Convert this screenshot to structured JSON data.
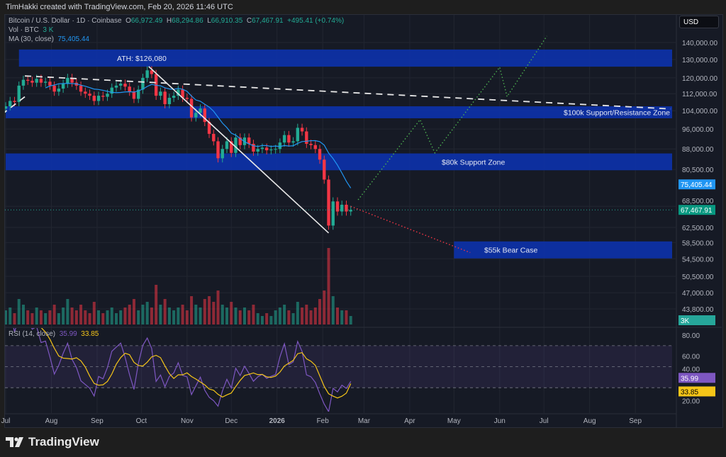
{
  "credit": "TimHakki created with TradingView.com, Feb 20, 2026 11:46 UTC",
  "legend": {
    "symbol": "Bitcoin / U.S. Dollar · 1D · Coinbase",
    "o_label": "O",
    "o": "66,972.49",
    "h_label": "H",
    "h": "68,294.86",
    "l_label": "L",
    "l": "66,910.35",
    "c_label": "C",
    "c": "67,467.91",
    "change": "+495.41 (+0.74%)",
    "vol_label": "Vol · BTC",
    "vol": "3 K",
    "ma_label": "MA (30, close)",
    "ma": "75,405.44",
    "rsi_label": "RSI (14, close)",
    "rsi": "35.99",
    "rsi_ma": "33.85"
  },
  "currency": "USD",
  "brand": "TradingView",
  "colors": {
    "up": "#22ab94",
    "down": "#f23645",
    "ma": "#2196f3",
    "zone": "#0d31a8",
    "rsi": "#7e57c2",
    "rsi_ma": "#f5c518",
    "bull_path": "#4caf50",
    "bear_path": "#f23645",
    "bg": "#161a25"
  },
  "chart_data": [
    {
      "type": "candlestick",
      "scale": "log",
      "x_start": "2025-07-01",
      "x_step_days": 3,
      "closes": [
        106,
        108.5,
        108,
        116,
        119,
        118.5,
        117.5,
        119.5,
        117.5,
        118,
        116,
        113,
        114.5,
        117,
        120,
        117.5,
        116,
        113,
        112,
        111,
        108.5,
        111,
        110.5,
        112,
        115,
        116,
        117,
        115.5,
        113,
        109.5,
        114,
        120,
        124,
        122,
        111,
        113,
        107,
        110,
        111,
        114,
        110,
        109.5,
        101,
        103,
        105,
        99,
        94,
        91,
        84.5,
        88,
        91,
        86.5,
        92.5,
        89.5,
        92.5,
        90,
        87,
        88,
        88.5,
        87.5,
        87.8,
        88,
        90.5,
        93.5,
        90.5,
        91,
        96.5,
        95,
        90,
        89.5,
        88,
        84,
        77,
        63,
        70,
        67,
        69,
        67,
        67.468
      ],
      "close_unit": "thousand USD",
      "volumes_k": [
        5,
        6,
        4,
        9,
        7,
        5,
        4,
        6,
        5,
        4,
        5,
        7,
        4,
        6,
        9,
        6,
        5,
        7,
        5,
        4,
        8,
        5,
        4,
        5,
        6,
        4,
        5,
        6,
        7,
        9,
        5,
        7,
        8,
        6,
        14,
        7,
        9,
        6,
        5,
        6,
        7,
        5,
        10,
        7,
        6,
        9,
        10,
        8,
        12,
        7,
        6,
        8,
        6,
        5,
        6,
        5,
        7,
        4,
        3,
        4,
        3,
        5,
        6,
        7,
        5,
        4,
        8,
        6,
        7,
        5,
        6,
        9,
        12,
        27,
        10,
        6,
        5,
        5,
        3
      ],
      "ma_period": 30,
      "y_ticks": [
        140000,
        130000,
        120000,
        112000,
        104000,
        96000,
        88000,
        80500,
        68500,
        62500,
        58500,
        54500,
        50500,
        47000,
        43800
      ],
      "y_tick_labels": [
        "140,000.00",
        "130,000.00",
        "120,000.00",
        "112,000.00",
        "104,000.00",
        "96,000.00",
        "88,000.00",
        "80,500.00",
        "68,500.00",
        "62,500.00",
        "58,500.00",
        "54,500.00",
        "50,500.00",
        "47,000.00",
        "43,800.00"
      ],
      "price_badges": [
        {
          "label": "75,405.44",
          "value": 75405.44,
          "color": "#2196f3"
        },
        {
          "label": "67,467.91",
          "value": 67467.91,
          "color": "#089981"
        }
      ],
      "volume_badge": "3K",
      "x_ticks": [
        {
          "date": "2025-07-01",
          "label": "Jul"
        },
        {
          "date": "2025-08-01",
          "label": "Aug"
        },
        {
          "date": "2025-09-01",
          "label": "Sep"
        },
        {
          "date": "2025-10-01",
          "label": "Oct"
        },
        {
          "date": "2025-11-01",
          "label": "Nov"
        },
        {
          "date": "2025-12-01",
          "label": "Dec"
        },
        {
          "date": "2026-01-01",
          "label": "2026",
          "bold": true
        },
        {
          "date": "2026-02-01",
          "label": "Feb"
        },
        {
          "date": "2026-03-01",
          "label": "Mar"
        },
        {
          "date": "2026-04-01",
          "label": "Apr"
        },
        {
          "date": "2026-05-01",
          "label": "May"
        },
        {
          "date": "2026-06-01",
          "label": "Jun"
        },
        {
          "date": "2026-07-01",
          "label": "Jul"
        },
        {
          "date": "2026-08-01",
          "label": "Aug"
        },
        {
          "date": "2026-09-01",
          "label": "Sep"
        }
      ],
      "zones": [
        {
          "label": "ATH: $126,080",
          "from": "2025-07-10",
          "top": 135800,
          "bottom": 126000,
          "label_pos": "left"
        },
        {
          "label": "$100k Support/Resistance Zone",
          "from": "2025-07-01",
          "top": 106000,
          "bottom": 100600,
          "label_pos": "right"
        },
        {
          "label": "$80k Support Zone",
          "from": "2025-07-01",
          "top": 86300,
          "bottom": 80200,
          "label_pos": "center"
        },
        {
          "label": "$55k Bear Case",
          "from": "2026-05-01",
          "top": 58800,
          "bottom": 54600,
          "label_pos": "left"
        }
      ],
      "trendlines": [
        {
          "style": "solid",
          "points": [
            [
              "2025-10-06",
              126080
            ],
            [
              "2026-02-05",
              61000
            ]
          ]
        },
        {
          "style": "dashed",
          "points": [
            [
              "2025-07-14",
              121000
            ],
            [
              "2026-09-25",
              104800
            ]
          ]
        },
        {
          "style": "dashed",
          "points": [
            [
              "2025-07-14",
              110500
            ],
            [
              "2026-04-40",
              101700
            ]
          ]
        }
      ],
      "projections": [
        {
          "name": "bull",
          "points": [
            [
              "2026-02-25",
              70500
            ],
            [
              "2026-04-08",
              100000
            ],
            [
              "2026-04-18",
              86500
            ],
            [
              "2026-06-01",
              125700
            ],
            [
              "2026-06-06",
              110600
            ],
            [
              "2026-07-03",
              144000
            ]
          ]
        },
        {
          "name": "bear",
          "points": [
            [
              "2026-02-20",
              68500
            ],
            [
              "2026-05-12",
              56000
            ]
          ]
        }
      ],
      "rsi": {
        "period": 14,
        "ma_period": 14,
        "y_ticks": [
          80,
          60,
          40,
          20
        ],
        "y_tick_labels": [
          "80.00",
          "60.00",
          "40.00",
          "20.00"
        ],
        "bands": [
          70,
          50,
          30
        ],
        "badges": [
          {
            "label": "35.99",
            "value": 35.99,
            "color": "#7e57c2"
          },
          {
            "label": "33.85",
            "value": 33.85,
            "color": "#f5c518"
          }
        ]
      }
    }
  ]
}
